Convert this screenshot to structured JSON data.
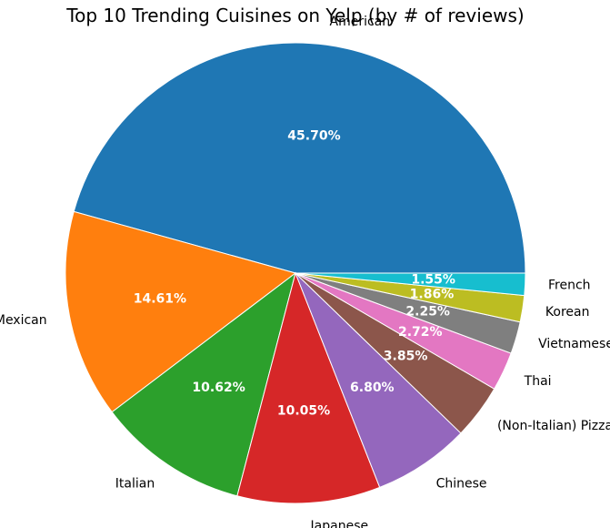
{
  "chart_data": {
    "type": "pie",
    "title": "Top 10 Trending Cuisines on Yelp (by # of reviews)",
    "categories": [
      "American",
      "Mexican",
      "Italian",
      "Japanese",
      "Chinese",
      "(Non-Italian) Pizza",
      "Thai",
      "Vietnamese",
      "Korean",
      "French"
    ],
    "values": [
      45.7,
      14.61,
      10.62,
      10.05,
      6.8,
      3.85,
      2.72,
      2.25,
      1.86,
      1.55
    ],
    "value_labels": [
      "45.70%",
      "14.61%",
      "10.62%",
      "10.05%",
      "6.80%",
      "3.85%",
      "2.72%",
      "2.25%",
      "1.86%",
      "1.55%"
    ],
    "colors": [
      "#1f77b4",
      "#ff7f0e",
      "#2ca02c",
      "#d62728",
      "#9467bd",
      "#8c564b",
      "#e377c2",
      "#7f7f7f",
      "#bcbd22",
      "#17becf"
    ],
    "start_angle_deg": 0,
    "direction": "counterclockwise",
    "legend": "none"
  }
}
